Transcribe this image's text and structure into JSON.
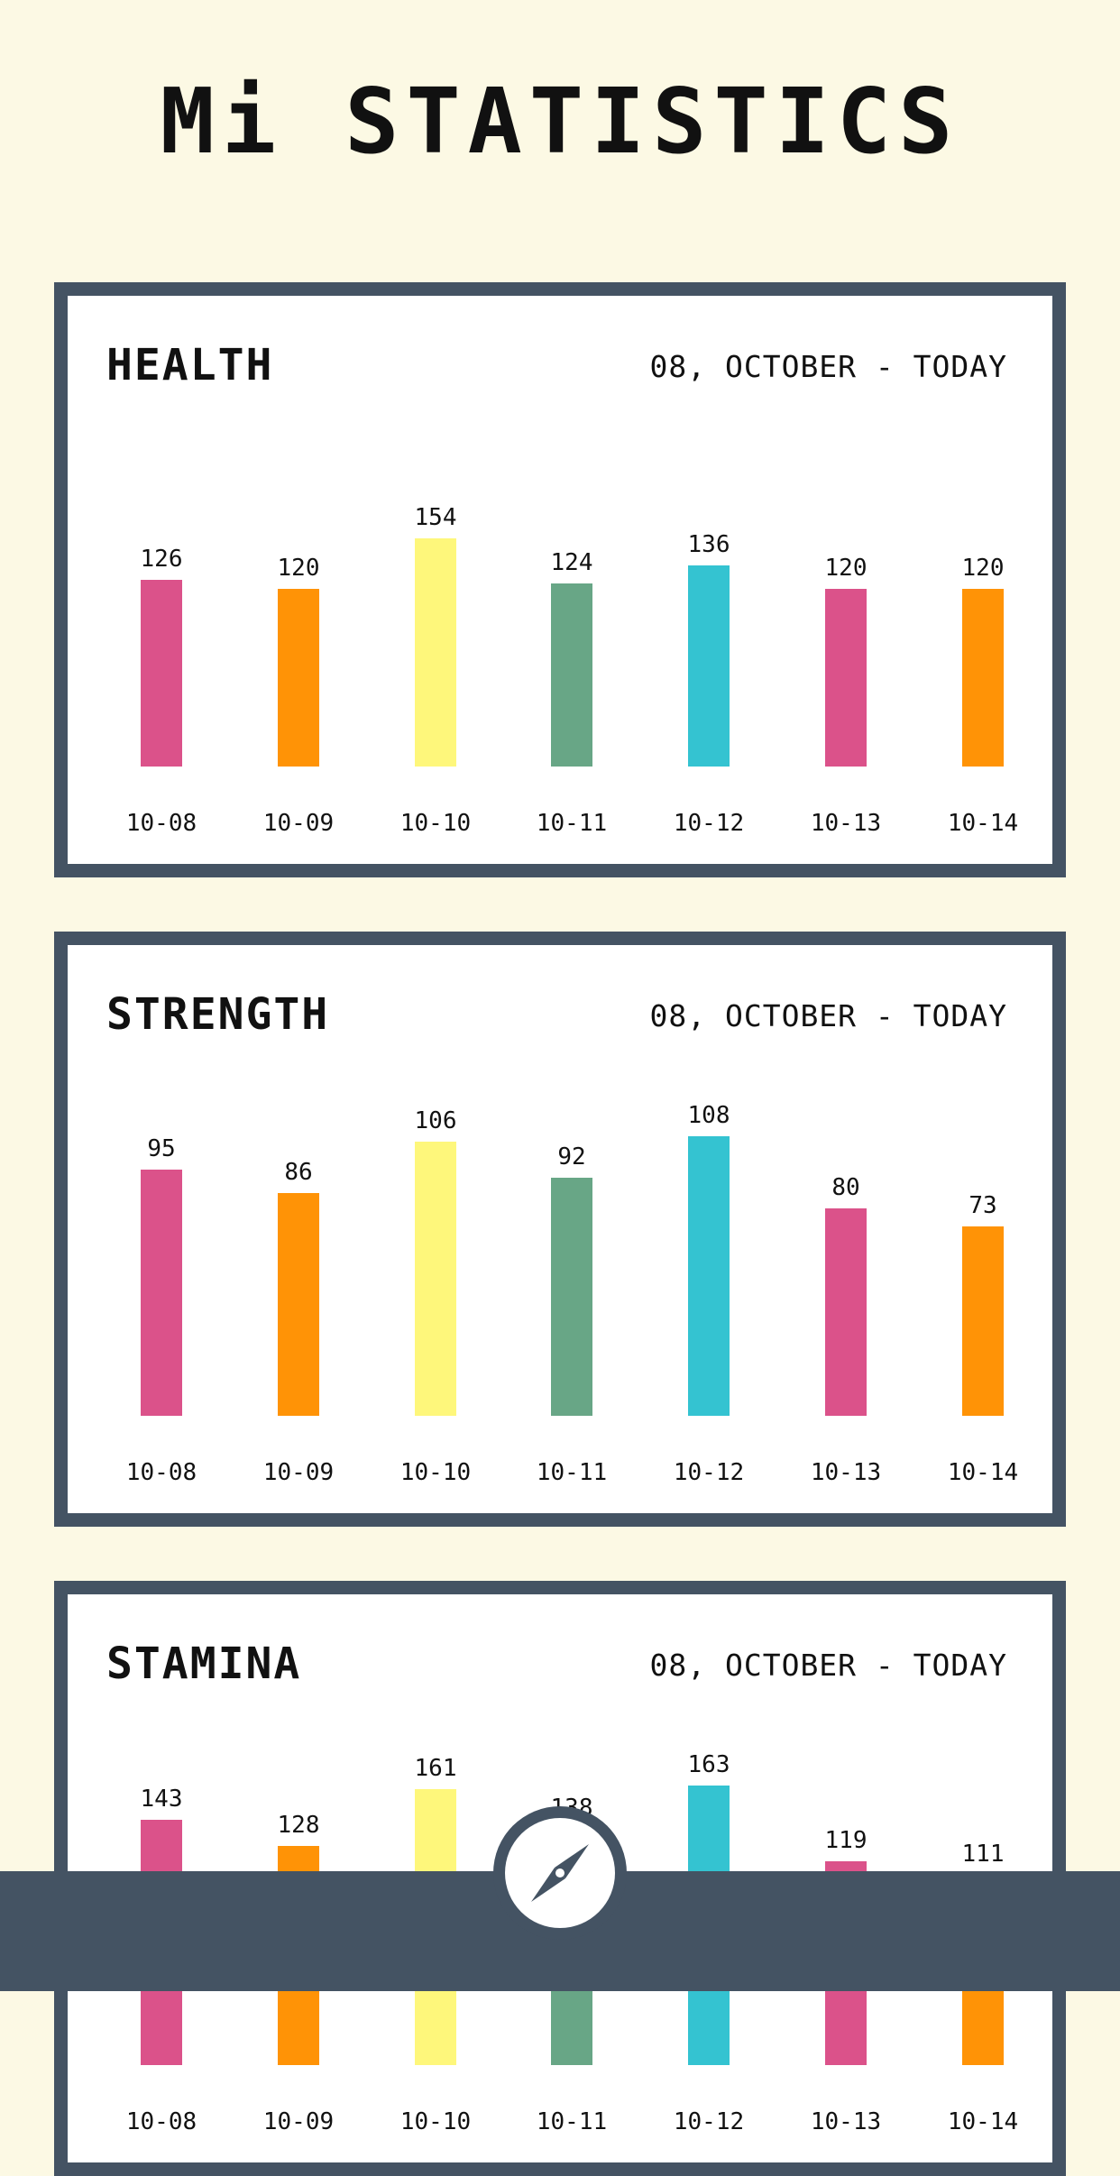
{
  "page_title": "Mi STATISTICS",
  "colors": {
    "background": "#fcf9e4",
    "frame": "#445363",
    "bar_colors": [
      "#db528a",
      "#ff9306",
      "#fef77b",
      "#68a686",
      "#34c3d1",
      "#db528a",
      "#ff9306"
    ]
  },
  "cards": [
    {
      "title": "HEALTH",
      "range": "08, OCTOBER - TODAY"
    },
    {
      "title": "STRENGTH",
      "range": "08, OCTOBER - TODAY"
    },
    {
      "title": "STAMINA",
      "range": "08, OCTOBER - TODAY"
    }
  ],
  "chart_data": [
    {
      "type": "bar",
      "title": "HEALTH",
      "categories": [
        "10-08",
        "10-09",
        "10-10",
        "10-11",
        "10-12",
        "10-13",
        "10-14"
      ],
      "values": [
        126,
        120,
        154,
        124,
        136,
        120,
        120
      ]
    },
    {
      "type": "bar",
      "title": "STRENGTH",
      "categories": [
        "10-08",
        "10-09",
        "10-10",
        "10-11",
        "10-12",
        "10-13",
        "10-14"
      ],
      "values": [
        95,
        86,
        106,
        92,
        108,
        80,
        73
      ]
    },
    {
      "type": "bar",
      "title": "STAMINA",
      "categories": [
        "10-08",
        "10-09",
        "10-10",
        "10-11",
        "10-12",
        "10-13",
        "10-14"
      ],
      "values": [
        143,
        128,
        161,
        138,
        163,
        119,
        111
      ]
    }
  ],
  "nav": {
    "icon": "compass-icon"
  }
}
